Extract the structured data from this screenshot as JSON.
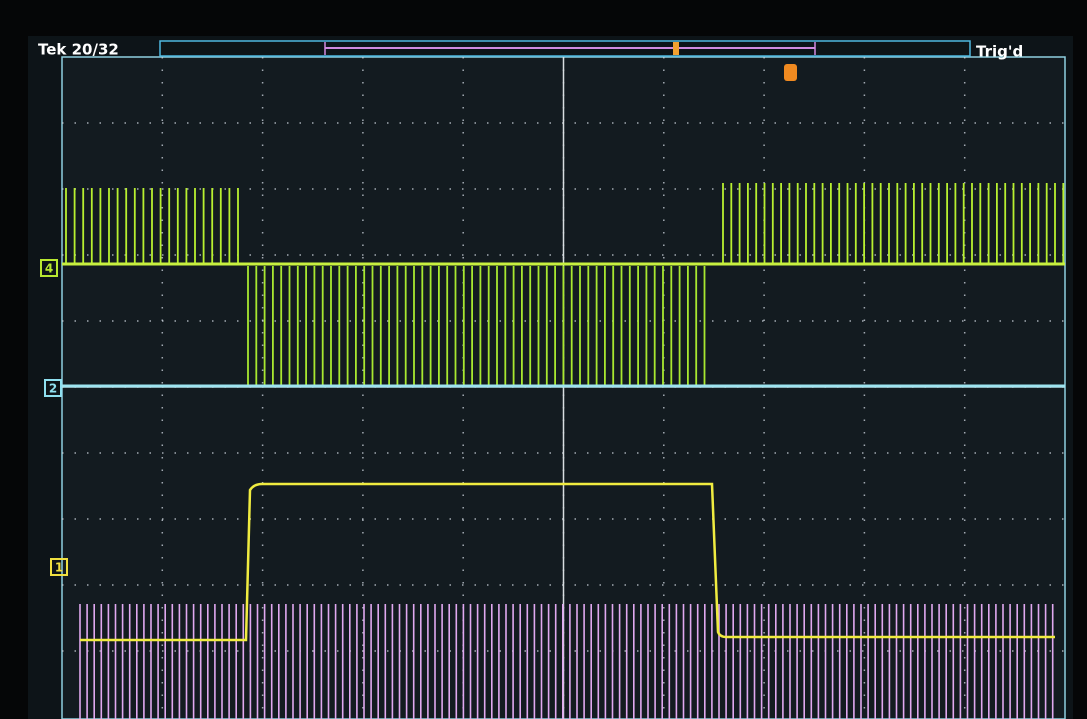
{
  "header": {
    "title": "Tek 20/32",
    "status": "Trig'd"
  },
  "channels": [
    {
      "label": "4"
    },
    {
      "label": "2"
    },
    {
      "label": "1"
    }
  ]
}
